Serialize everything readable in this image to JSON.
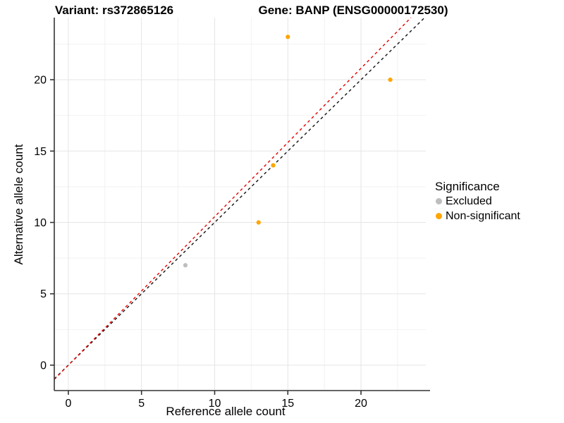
{
  "chart_data": {
    "type": "scatter",
    "title_left": "Variant: rs372865126",
    "title_right": "Gene: BANP (ENSG00000172530)",
    "xlabel": "Reference allele count",
    "ylabel": "Alternative allele count",
    "xlim": [
      -0.96,
      24.43
    ],
    "ylim": [
      -1.78,
      24.35
    ],
    "x_ticks": [
      0,
      5,
      10,
      15,
      20
    ],
    "y_ticks": [
      0,
      5,
      10,
      15,
      20
    ],
    "x_minor": [
      2.5,
      7.5,
      12.5,
      17.5,
      22.5
    ],
    "y_minor": [
      2.5,
      7.5,
      12.5,
      17.5,
      22.5
    ],
    "grid": "on",
    "legend": {
      "title": "Significance",
      "position": "right",
      "entries": [
        {
          "label": "Excluded",
          "color": "#BEBEBE"
        },
        {
          "label": "Non-significant",
          "color": "#FFA500"
        }
      ]
    },
    "series": [
      {
        "name": "Excluded",
        "color": "#BEBEBE",
        "points": [
          {
            "x": 8,
            "y": 7
          }
        ]
      },
      {
        "name": "Non-significant",
        "color": "#FFA500",
        "points": [
          {
            "x": 13,
            "y": 10
          },
          {
            "x": 14,
            "y": 14
          },
          {
            "x": 15,
            "y": 23
          },
          {
            "x": 22,
            "y": 20
          }
        ]
      }
    ],
    "reference_lines": [
      {
        "name": "identity-line",
        "style": "dashed",
        "color": "#111111",
        "slope": 1,
        "intercept": 0
      },
      {
        "name": "expected-ratio-line",
        "style": "dashed",
        "color": "#E10000",
        "slope": 1.04,
        "intercept": 0
      }
    ],
    "colors": {
      "grid_major": "#E5E5E5",
      "grid_minor": "#F2F2F2",
      "axis": "#333333",
      "text": "#000000",
      "background": "#FFFFFF"
    }
  }
}
